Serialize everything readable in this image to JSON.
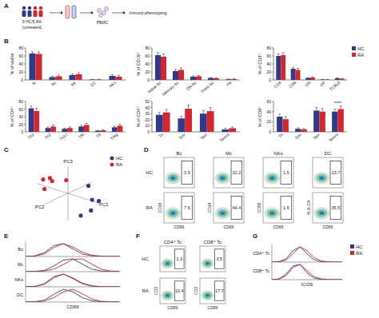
{
  "panel_labels": [
    "A",
    "B",
    "C",
    "D",
    "E",
    "F",
    "G"
  ],
  "schematic": {
    "cohort": "5 HC/5 RA",
    "note": "(untreated)",
    "sample": "PBMC",
    "assay": "Immuno-phenotyping"
  },
  "chart_data": [
    {
      "type": "bar",
      "ylabel": "% of viable",
      "categories": [
        "Tc",
        "Bc",
        "Mc",
        "DC",
        "NKs"
      ],
      "ylim": [
        0,
        80
      ],
      "yticks": [
        0,
        20,
        40,
        60,
        80
      ],
      "series": [
        {
          "name": "HC",
          "color": "#2e3a8c",
          "values": [
            66,
            7,
            12,
            1,
            10
          ],
          "errors": [
            4,
            2,
            3,
            0.5,
            3
          ]
        },
        {
          "name": "RA",
          "color": "#d7262b",
          "values": [
            65,
            9,
            14,
            1,
            8
          ],
          "errors": [
            5,
            3,
            4,
            0.5,
            3
          ]
        }
      ]
    },
    {
      "type": "bar",
      "ylabel": "% of CD19⁺",
      "categories": [
        "Naive Bc",
        "Memory Bc",
        "DN Bc",
        "Trans Bc",
        "PB"
      ],
      "ylim": [
        0,
        80
      ],
      "yticks": [
        0,
        20,
        40,
        60,
        80
      ],
      "series": [
        {
          "name": "HC",
          "color": "#2e3a8c",
          "values": [
            62,
            22,
            8,
            5,
            1.5
          ],
          "errors": [
            6,
            4,
            2,
            1,
            0.8
          ]
        },
        {
          "name": "RA",
          "color": "#d7262b",
          "values": [
            58,
            25,
            9,
            4,
            2
          ],
          "errors": [
            7,
            5,
            2,
            1,
            0.8
          ]
        }
      ]
    },
    {
      "type": "bar",
      "ylabel": "% of CD3⁺",
      "categories": [
        "CD4",
        "CD8",
        "DN",
        "DP",
        "TCRγδ"
      ],
      "ylim": [
        0,
        80
      ],
      "yticks": [
        0,
        20,
        40,
        60,
        80
      ],
      "legend": "upper right",
      "series": [
        {
          "name": "HC",
          "color": "#2e3a8c",
          "values": [
            60,
            28,
            5,
            1,
            4
          ],
          "errors": [
            5,
            4,
            1,
            0.5,
            1
          ]
        },
        {
          "name": "RA",
          "color": "#d7262b",
          "values": [
            62,
            25,
            6,
            1,
            3
          ],
          "errors": [
            6,
            4,
            2,
            0.5,
            1
          ]
        }
      ]
    },
    {
      "type": "bar",
      "ylabel": "% of CD4⁺",
      "categories": [
        "Th1",
        "Th2",
        "Th17",
        "Tfh",
        "Tfr",
        "Treg"
      ],
      "ylim": [
        0,
        80
      ],
      "yticks": [
        0,
        20,
        40,
        60,
        80
      ],
      "series": [
        {
          "name": "HC",
          "color": "#2e3a8c",
          "values": [
            62,
            10,
            8,
            14,
            3,
            12
          ],
          "errors": [
            6,
            3,
            2,
            3,
            1,
            3
          ]
        },
        {
          "name": "RA",
          "color": "#d7262b",
          "values": [
            55,
            14,
            10,
            18,
            4,
            16
          ],
          "errors": [
            7,
            4,
            3,
            4,
            1,
            4
          ]
        }
      ]
    },
    {
      "type": "bar",
      "ylabel": "% of CD4⁺",
      "categories": [
        "Tn",
        "Tcm",
        "Tem",
        "Temra"
      ],
      "ylim": [
        0,
        50
      ],
      "yticks": [
        0,
        10,
        20,
        30,
        40,
        50
      ],
      "series": [
        {
          "name": "HC",
          "color": "#2e3a8c",
          "values": [
            28,
            22,
            30,
            4
          ],
          "errors": [
            4,
            4,
            5,
            2
          ]
        },
        {
          "name": "RA",
          "color": "#d7262b",
          "values": [
            32,
            38,
            34,
            6
          ],
          "errors": [
            5,
            6,
            6,
            2
          ]
        }
      ]
    },
    {
      "type": "bar",
      "ylabel": "% of CD8⁺",
      "categories": [
        "Tn",
        "Tcm",
        "Tem",
        "Temra"
      ],
      "ylim": [
        0,
        60
      ],
      "yticks": [
        0,
        20,
        40,
        60
      ],
      "annotations": [
        {
          "text": "****",
          "category": 3
        }
      ],
      "series": [
        {
          "name": "HC",
          "color": "#2e3a8c",
          "values": [
            30,
            6,
            42,
            40
          ],
          "errors": [
            5,
            2,
            6,
            5
          ]
        },
        {
          "name": "RA",
          "color": "#d7262b",
          "values": [
            25,
            5,
            40,
            45
          ],
          "errors": [
            5,
            2,
            6,
            6
          ]
        }
      ]
    },
    {
      "type": "scatter3d",
      "xlabel": "PC1",
      "ylabel": "PC2",
      "zlabel": "PC3",
      "xlim": [
        -1,
        1
      ],
      "ylim": [
        -1,
        1
      ],
      "zlim": [
        -1,
        1
      ],
      "tick_labels": false,
      "legend": "upper right",
      "series": [
        {
          "name": "HC",
          "color": "#2e3a8c",
          "x": [
            0.4,
            0.6,
            0.2,
            0.5,
            0.7
          ],
          "y": [
            -0.5,
            -0.2,
            -0.6,
            0.1,
            -0.4
          ],
          "z": [
            -0.3,
            -0.5,
            0.1,
            -0.6,
            -0.2
          ]
        },
        {
          "name": "RA",
          "color": "#d7262b",
          "x": [
            -0.5,
            -0.3,
            0.1,
            -0.6,
            -0.2
          ],
          "y": [
            0.4,
            0.6,
            0.2,
            -0.1,
            0.5
          ],
          "z": [
            0.5,
            0.3,
            0.6,
            0.2,
            0.7
          ]
        }
      ]
    }
  ],
  "flow_plots": [
    {
      "columns": [
        "Bc",
        "Mc",
        "NKs",
        "DC"
      ],
      "rows": [
        "HC",
        "RA"
      ],
      "y_labels": [
        "CD19",
        "CD14",
        "CD56",
        "HLA-DR"
      ],
      "x_label": "CD69",
      "percentages": [
        [
          0.9,
          10.2,
          1.5,
          13.7
        ],
        [
          7.6,
          44.4,
          1.6,
          35.5
        ]
      ]
    },
    {
      "columns": [
        "CD4⁺ Tc",
        "CD8⁺ Tc"
      ],
      "rows": [
        "HC",
        "RA"
      ],
      "y_labels": [
        "CD3",
        "CD3"
      ],
      "x_label": "CD69",
      "percentages": [
        [
          1.3,
          3.5
        ],
        [
          10.4,
          17.7
        ]
      ]
    }
  ],
  "histograms": [
    {
      "x_label": "CD69",
      "show_legend": false,
      "x": [
        0,
        1,
        2,
        3,
        4,
        5,
        6,
        7,
        8,
        9,
        10
      ],
      "xlim": [
        0,
        10
      ],
      "ylim": [
        0,
        100
      ],
      "series": [
        {
          "name": "HC",
          "color": "#2e3a8c"
        },
        {
          "name": "RA",
          "color": "#d7262b"
        }
      ],
      "rows": [
        {
          "label": "Bc",
          "values": [
            [
              0,
              5,
              30,
              85,
              100,
              60,
              20,
              5,
              1,
              0,
              0
            ],
            [
              0,
              3,
              20,
              70,
              100,
              75,
              35,
              10,
              3,
              1,
              0
            ]
          ]
        },
        {
          "label": "Mc",
          "values": [
            [
              0,
              2,
              10,
              45,
              90,
              100,
              60,
              20,
              5,
              1,
              0
            ],
            [
              0,
              1,
              5,
              20,
              55,
              95,
              100,
              60,
              20,
              5,
              0
            ]
          ]
        },
        {
          "label": "NKs",
          "values": [
            [
              0,
              4,
              25,
              80,
              100,
              65,
              25,
              6,
              1,
              0,
              0
            ],
            [
              0,
              3,
              20,
              70,
              100,
              70,
              30,
              8,
              2,
              0,
              0
            ]
          ]
        },
        {
          "label": "DC",
          "values": [
            [
              0,
              2,
              15,
              60,
              100,
              80,
              35,
              10,
              2,
              0,
              0
            ],
            [
              0,
              1,
              8,
              35,
              80,
              100,
              65,
              25,
              6,
              1,
              0
            ]
          ]
        }
      ]
    },
    {
      "x_label": "ICOS",
      "show_legend": true,
      "x": [
        0,
        1,
        2,
        3,
        4,
        5,
        6,
        7,
        8,
        9,
        10
      ],
      "xlim": [
        0,
        10
      ],
      "ylim": [
        0,
        100
      ],
      "series": [
        {
          "name": "HC",
          "color": "#2e3a8c"
        },
        {
          "name": "RA",
          "color": "#d7262b"
        }
      ],
      "rows": [
        {
          "label": "CD4⁺ Tc",
          "values": [
            [
              0,
              3,
              20,
              75,
              100,
              55,
              15,
              3,
              0,
              0,
              0
            ],
            [
              0,
              2,
              12,
              55,
              100,
              75,
              30,
              8,
              1,
              0,
              0
            ]
          ]
        },
        {
          "label": "CD8⁺ Tc",
          "values": [
            [
              0,
              5,
              35,
              90,
              100,
              45,
              10,
              2,
              0,
              0,
              0
            ],
            [
              0,
              3,
              25,
              80,
              100,
              60,
              20,
              5,
              1,
              0,
              0
            ]
          ]
        }
      ]
    }
  ]
}
